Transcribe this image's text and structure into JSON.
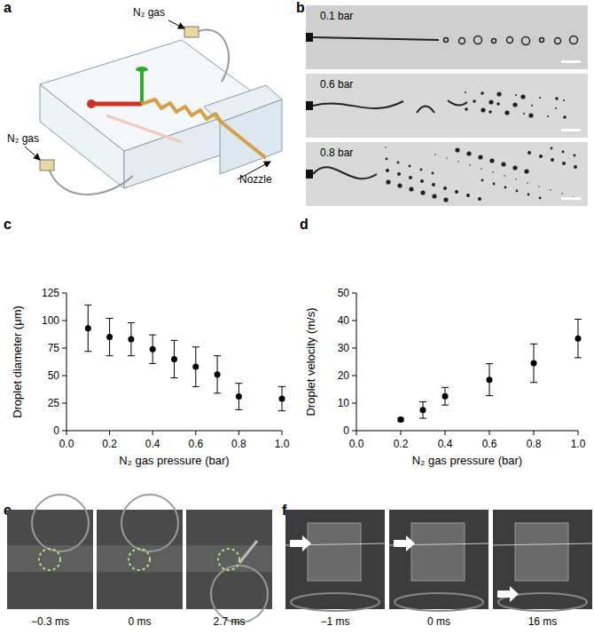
{
  "chart_data": [
    {
      "type": "scatter",
      "x_label": "N₂ gas pressure (bar)",
      "y_label": "Droplet diameter (μm)",
      "x": [
        0.1,
        0.2,
        0.3,
        0.4,
        0.5,
        0.6,
        0.7,
        0.8,
        1.0
      ],
      "values": [
        93,
        85,
        83,
        74,
        65,
        58,
        51,
        31,
        29
      ],
      "errors": [
        21,
        17,
        15,
        13,
        17,
        18,
        17,
        12,
        11
      ],
      "xlim": [
        0,
        1.0
      ],
      "xticks": [
        {
          "value": 0,
          "label": "0.0"
        },
        0.2,
        0.4,
        0.6,
        0.8,
        {
          "value": 1.0,
          "label": "1.0"
        }
      ],
      "ylim": [
        0,
        125
      ],
      "yticks": [
        0,
        25,
        50,
        75,
        100,
        125
      ],
      "color": "#000000",
      "marker": "circle",
      "grid": false
    },
    {
      "type": "scatter",
      "x_label": "N₂ gas pressure (bar)",
      "y_label": "Droplet velocity (m/s)",
      "x": [
        0.2,
        0.3,
        0.4,
        0.6,
        0.8,
        1.0
      ],
      "values": [
        4,
        7.5,
        12.5,
        18.5,
        24.5,
        33.5
      ],
      "errors": [
        0.5,
        3,
        3.2,
        5.8,
        7,
        7
      ],
      "xlim": [
        0,
        1.0
      ],
      "xticks": [
        {
          "value": 0,
          "label": "0.0"
        },
        0.2,
        0.4,
        0.6,
        0.8,
        {
          "value": 1.0,
          "label": "1.0"
        }
      ],
      "ylim": [
        0,
        50
      ],
      "yticks": [
        0,
        10,
        20,
        30,
        40,
        50
      ],
      "color": "#000000",
      "marker": "circle",
      "grid": false
    }
  ],
  "figure": {
    "panel_labels": [
      "a",
      "b",
      "c",
      "d",
      "e",
      "f"
    ],
    "a": {
      "gas_labels": [
        "N₂ gas",
        "N₂ gas"
      ],
      "nozzle_label": "Nozzle"
    },
    "b": {
      "pressures": [
        "0.1 bar",
        "0.6 bar",
        "0.8 bar"
      ]
    },
    "e": {
      "times": [
        "−0.3 ms",
        "0 ms",
        "2.7 ms"
      ]
    },
    "f": {
      "times": [
        "−1 ms",
        "0 ms",
        "16 ms"
      ]
    }
  }
}
